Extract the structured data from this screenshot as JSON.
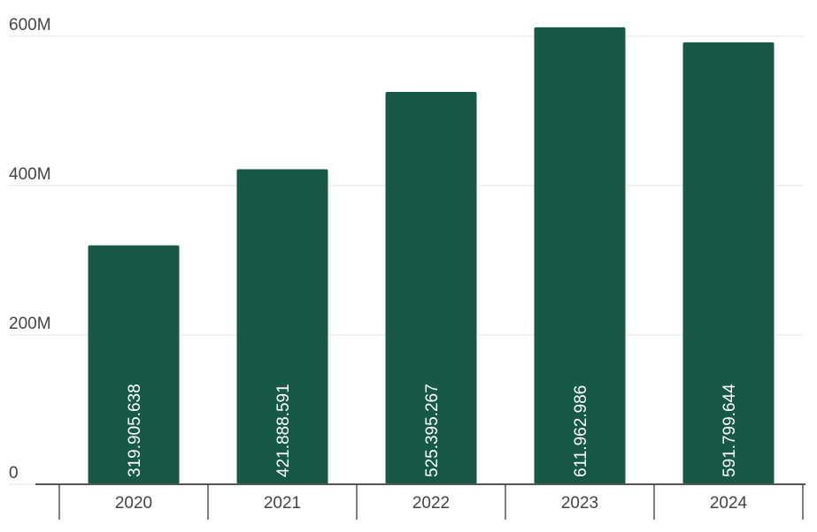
{
  "chart_data": {
    "type": "bar",
    "categories": [
      "2020",
      "2021",
      "2022",
      "2023",
      "2024"
    ],
    "values": [
      319905638,
      421888591,
      525395267,
      611962986,
      591799644
    ],
    "value_labels": [
      "319.905.638",
      "421.888.591",
      "525.395.267",
      "611.962.986",
      "591.799.644"
    ],
    "color": "#185846",
    "ylim": [
      0,
      600000000
    ],
    "yticks": [
      0,
      {
        "value": 200000000,
        "label": "200M"
      },
      {
        "value": 400000000,
        "label": "400M"
      },
      {
        "value": 600000000,
        "label": "600M"
      }
    ],
    "grid": true
  }
}
